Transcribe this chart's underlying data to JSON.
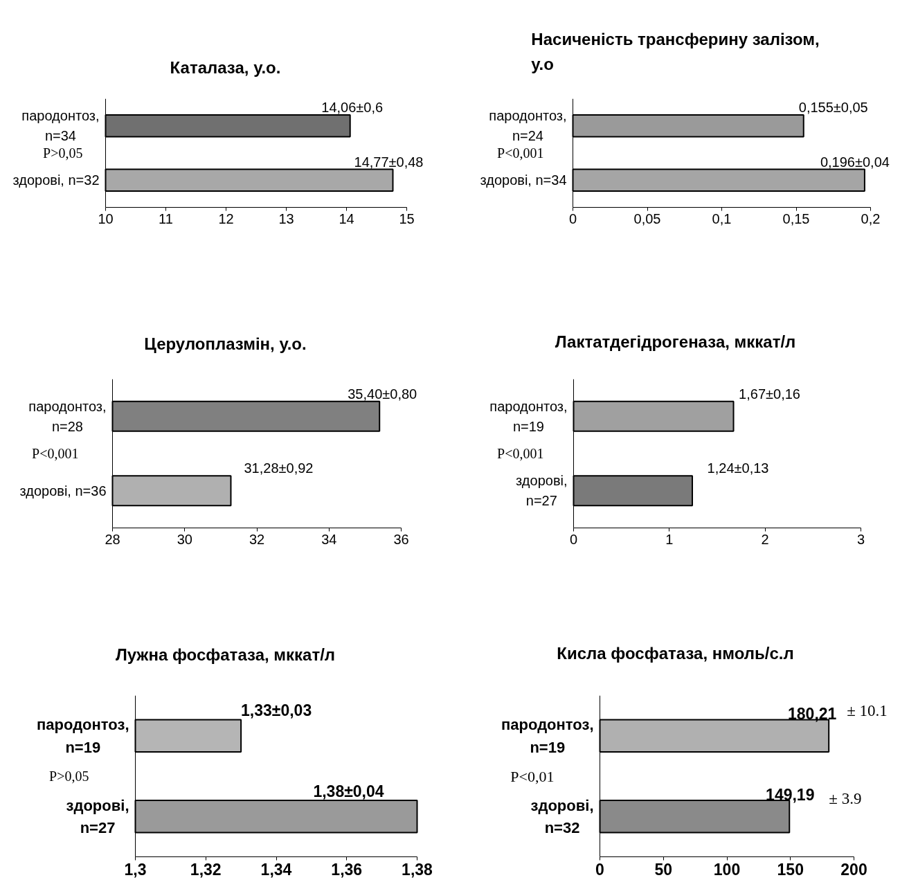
{
  "chart_data": [
    {
      "type": "bar",
      "orientation": "horizontal",
      "title": "Каталаза, у.о.",
      "categories": [
        "пародонтоз,\nn=34",
        "здорові, n=32"
      ],
      "values": [
        14.06,
        14.77
      ],
      "colors": [
        "#707070",
        "#a8a8a8"
      ],
      "value_labels": [
        "14,06±0,6",
        "14,77±0,48"
      ],
      "xlim": [
        10,
        15
      ],
      "xticks": [
        10,
        11,
        12,
        13,
        14,
        15
      ],
      "annotations": [
        "P>0,05"
      ]
    },
    {
      "type": "bar",
      "orientation": "horizontal",
      "title": "Насиченість трансферину залізом,\nу.о",
      "categories": [
        "пародонтоз,\nn=24",
        "здорові, n=34"
      ],
      "values": [
        0.155,
        0.196
      ],
      "colors": [
        "#9a9a9a",
        "#a5a5a5"
      ],
      "value_labels": [
        "0,155±0,05",
        "0,196±0,04"
      ],
      "xlim": [
        0,
        0.2
      ],
      "xticks": [
        0,
        {
          "value": 0.05,
          "label": "0,05"
        },
        {
          "value": 0.1,
          "label": "0,1"
        },
        {
          "value": 0.15,
          "label": "0,15"
        },
        {
          "value": 0.2,
          "label": "0,2"
        }
      ],
      "annotations": [
        "P<0,001"
      ]
    },
    {
      "type": "bar",
      "orientation": "horizontal",
      "title": "Церулоплазмін, у.о.",
      "categories": [
        "пародонтоз,\nn=28",
        "здорові, n=36"
      ],
      "values": [
        35.4,
        31.28
      ],
      "colors": [
        "#808080",
        "#b0b0b0"
      ],
      "value_labels": [
        "35,40±0,80",
        "31,28±0,92"
      ],
      "xlim": [
        28,
        36
      ],
      "xticks": [
        28,
        30,
        32,
        34,
        36
      ],
      "annotations": [
        "P<0,001"
      ]
    },
    {
      "type": "bar",
      "orientation": "horizontal",
      "title": "Лактатдегідрогеназа, мккат/л",
      "categories": [
        "пародонтоз,\nn=19",
        "здорові,\nn=27"
      ],
      "values": [
        1.67,
        1.24
      ],
      "colors": [
        "#a0a0a0",
        "#7a7a7a"
      ],
      "value_labels": [
        "1,67±0,16",
        "1,24±0,13"
      ],
      "xlim": [
        0,
        3
      ],
      "xticks": [
        0,
        1,
        2,
        3
      ],
      "annotations": [
        "P<0,001"
      ]
    },
    {
      "type": "bar",
      "orientation": "horizontal",
      "title": "Лужна фосфатаза, мккат/л",
      "categories": [
        "пародонтоз,\nn=19",
        "здорові,\nn=27"
      ],
      "values": [
        1.33,
        1.38
      ],
      "colors": [
        "#b5b5b5",
        "#9a9a9a"
      ],
      "value_labels": [
        "1,33±0,03",
        "1,38±0,04"
      ],
      "xlim": [
        1.3,
        1.38
      ],
      "xticks": [
        {
          "value": 1.3,
          "label": "1,3"
        },
        {
          "value": 1.32,
          "label": "1,32"
        },
        {
          "value": 1.34,
          "label": "1,34"
        },
        {
          "value": 1.36,
          "label": "1,36"
        },
        {
          "value": 1.38,
          "label": "1,38"
        }
      ],
      "annotations": [
        "P>0,05"
      ]
    },
    {
      "type": "bar",
      "orientation": "horizontal",
      "title": "Кисла фосфатаза, нмоль/с.л",
      "categories": [
        "пародонтоз,\nn=19",
        "здорові,\nn=32"
      ],
      "values": [
        180.21,
        149.19
      ],
      "colors": [
        "#b0b0b0",
        "#8a8a8a"
      ],
      "value_labels": [
        "180,21",
        "149,19"
      ],
      "xlim": [
        0,
        200
      ],
      "xticks": [
        0,
        50,
        100,
        150,
        200
      ],
      "annotations": [
        "P<0,01",
        {
          "text": "± 10.1",
          "x": 180.21,
          "y": "пародонтоз,\nn=19"
        },
        {
          "text": "± 3.9",
          "x": 149.19,
          "y": "здорові,\nn=32"
        }
      ]
    }
  ]
}
